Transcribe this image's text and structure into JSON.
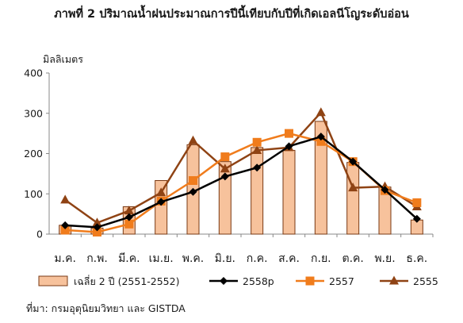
{
  "title": "ภาพที่ 2 ปริมาณน้ำฝนประมาณการปีนี้เทียบกับปีที่เกิดเอลนีโญระดับอ่อน",
  "source": "ที่มา: กรมอุตุนิยมวิทยา และ GISTDA",
  "colors": {
    "bar_fill": "#f7c29c",
    "bar_stroke": "#7a3a14",
    "series_2558p": "#000000",
    "series_2557": "#f07c1c",
    "series_2555": "#8f4314",
    "axis": "#888888"
  },
  "chart_data": {
    "type": "bar+line",
    "ylabel": "มิลลิเมตร",
    "ylim": [
      0,
      400
    ],
    "yticks": [
      0,
      100,
      200,
      300,
      400
    ],
    "grid": false,
    "legend_position": "bottom",
    "categories": [
      "ม.ค.",
      "ก.พ.",
      "มี.ค.",
      "เม.ย.",
      "พ.ค.",
      "มิ.ย.",
      "ก.ค.",
      "ส.ค.",
      "ก.ย.",
      "ต.ค.",
      "พ.ย.",
      "ธ.ค."
    ],
    "bar_series": {
      "name": "เฉลี่ย 2 ปี (2551-2552)",
      "values": [
        22,
        15,
        68,
        133,
        222,
        180,
        215,
        208,
        280,
        178,
        117,
        35
      ],
      "marker": "bar"
    },
    "line_series": [
      {
        "name": "2558p",
        "values": [
          22,
          17,
          42,
          80,
          105,
          143,
          165,
          218,
          242,
          180,
          110,
          38
        ],
        "marker": "diamond",
        "color_key": "series_2558p"
      },
      {
        "name": "2557",
        "values": [
          10,
          5,
          25,
          82,
          133,
          192,
          228,
          250,
          230,
          180,
          108,
          78
        ],
        "marker": "square",
        "color_key": "series_2557"
      },
      {
        "name": "2555",
        "values": [
          85,
          28,
          58,
          103,
          232,
          162,
          208,
          215,
          302,
          115,
          118,
          68
        ],
        "marker": "triangle",
        "color_key": "series_2555"
      }
    ]
  }
}
